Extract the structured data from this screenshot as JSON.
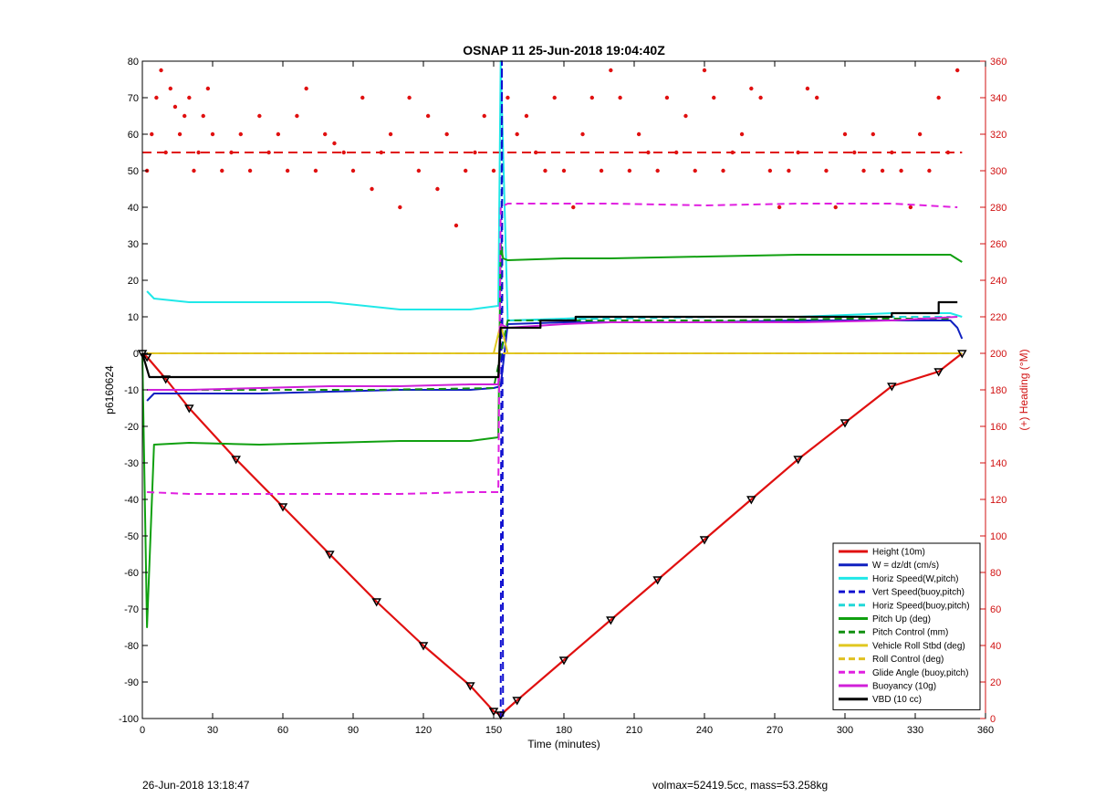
{
  "chart_data": {
    "type": "line",
    "title": "OSNAP 11 25-Jun-2018 19:04:40Z",
    "xlabel": "Time (minutes)",
    "ylabel": "p6160624",
    "y2label": "(+) Heading (°M)",
    "xlim": [
      0,
      360
    ],
    "ylim": [
      -100,
      80
    ],
    "y2lim": [
      0,
      360
    ],
    "xticks": [
      0,
      30,
      60,
      90,
      120,
      150,
      180,
      210,
      240,
      270,
      300,
      330,
      360
    ],
    "yticks": [
      -100,
      -90,
      -80,
      -70,
      -60,
      -50,
      -40,
      -30,
      -20,
      -10,
      0,
      10,
      20,
      30,
      40,
      50,
      60,
      70,
      80
    ],
    "y2ticks": [
      0,
      20,
      40,
      60,
      80,
      100,
      120,
      140,
      160,
      180,
      200,
      220,
      240,
      260,
      280,
      300,
      320,
      340,
      360
    ],
    "grid": false,
    "legend_position": "bottom-right",
    "series": [
      {
        "name": "Height (10m)",
        "color": "#e01010",
        "style": "solid",
        "x": [
          0,
          2,
          10,
          20,
          40,
          60,
          80,
          100,
          120,
          140,
          150,
          153,
          160,
          180,
          200,
          220,
          240,
          260,
          280,
          300,
          320,
          340,
          350
        ],
        "y": [
          0,
          -1,
          -7,
          -15,
          -29,
          -42,
          -55,
          -68,
          -80,
          -91,
          -98,
          -99,
          -95,
          -84,
          -73,
          -62,
          -51,
          -40,
          -29,
          -19,
          -9,
          -5,
          0
        ]
      },
      {
        "name": "W = dz/dt (cm/s)",
        "color": "#1020c0",
        "style": "solid",
        "x": [
          2,
          5,
          20,
          50,
          80,
          110,
          140,
          150,
          153,
          156,
          180,
          200,
          240,
          280,
          320,
          345,
          348,
          350
        ],
        "y": [
          -13,
          -11,
          -11,
          -11,
          -10.5,
          -10,
          -10,
          -9.5,
          -9,
          8,
          8.5,
          8.5,
          8.5,
          9,
          9,
          9,
          7,
          4
        ]
      },
      {
        "name": "Horiz Speed(W,pitch)",
        "color": "#20e8e8",
        "style": "solid",
        "x": [
          2,
          5,
          20,
          50,
          80,
          110,
          140,
          152,
          153,
          156,
          180,
          200,
          240,
          280,
          320,
          345,
          350
        ],
        "y": [
          17,
          15,
          14,
          14,
          14,
          12,
          12,
          13,
          80,
          9,
          9.5,
          10,
          10,
          10,
          11,
          11,
          10
        ]
      },
      {
        "name": "Vert Speed(buoy,pitch)",
        "color": "#1010d0",
        "style": "dashed",
        "x": [
          153,
          153.5,
          154
        ],
        "y": [
          -100,
          80,
          -100
        ]
      },
      {
        "name": "Horiz Speed(buoy,pitch)",
        "color": "#20d8d8",
        "style": "dashed",
        "x": [
          156,
          200,
          250,
          300,
          345
        ],
        "y": [
          9,
          9.5,
          10,
          10,
          10
        ]
      },
      {
        "name": "Pitch Up (deg)",
        "color": "#10a010",
        "style": "solid",
        "x": [
          0,
          2,
          5,
          20,
          50,
          80,
          110,
          140,
          152,
          153,
          154,
          156,
          180,
          200,
          240,
          280,
          320,
          345,
          350
        ],
        "y": [
          0,
          -75,
          -25,
          -24.5,
          -25,
          -24.5,
          -24,
          -24,
          -23,
          30,
          26,
          25.5,
          26,
          26,
          26.5,
          27,
          27,
          27,
          25
        ]
      },
      {
        "name": "Pitch Control (mm)",
        "color": "#109010",
        "style": "dashed",
        "x": [
          5,
          50,
          100,
          150,
          156,
          200,
          250,
          300,
          345
        ],
        "y": [
          -10,
          -10,
          -10,
          -9.5,
          9,
          9,
          9,
          9.5,
          9.5
        ]
      },
      {
        "name": "Vehicle Roll Stbd (deg)",
        "color": "#e0c820",
        "style": "solid",
        "x": [
          2,
          20,
          50,
          80,
          110,
          150,
          153,
          156,
          200,
          250,
          300,
          350
        ],
        "y": [
          0,
          0,
          0,
          0,
          0,
          0,
          8,
          0,
          0,
          0,
          0,
          0
        ]
      },
      {
        "name": "Roll Control (deg)",
        "color": "#e0c020",
        "style": "dashed",
        "x": [
          2,
          50,
          100,
          150,
          156,
          200,
          250,
          300,
          350
        ],
        "y": [
          0,
          0,
          0,
          0,
          0,
          0,
          0,
          0,
          0
        ]
      },
      {
        "name": "Glide Angle (buoy,pitch)",
        "color": "#e020e0",
        "style": "dashed",
        "x": [
          2,
          20,
          50,
          80,
          110,
          140,
          152,
          153,
          156,
          180,
          200,
          240,
          280,
          320,
          348
        ],
        "y": [
          -38,
          -38.5,
          -38.5,
          -38.5,
          -38.5,
          -38,
          -38,
          40,
          41,
          41,
          41,
          40.5,
          41,
          41,
          40
        ]
      },
      {
        "name": "Buoyancy (10g)",
        "color": "#d020d8",
        "style": "solid",
        "x": [
          2,
          20,
          50,
          80,
          110,
          140,
          152,
          153,
          156,
          180,
          200,
          240,
          280,
          320,
          348
        ],
        "y": [
          -10,
          -10,
          -9.5,
          -9,
          -9,
          -8.5,
          -8.5,
          8,
          7,
          8,
          8.5,
          8.5,
          8.5,
          9,
          10
        ]
      },
      {
        "name": "VBD (10 cc)",
        "color": "#000000",
        "style": "solid",
        "x": [
          0,
          3,
          3,
          152,
          153,
          170,
          170,
          185,
          185,
          240,
          240,
          320,
          320,
          340,
          340,
          348
        ],
        "y": [
          0,
          -6.5,
          -6.5,
          -6.5,
          7,
          7,
          9,
          9,
          10,
          10,
          10,
          10,
          11,
          11,
          14,
          14
        ]
      }
    ],
    "heading_series": {
      "name": "(+) Heading (°M)",
      "color": "#e01010",
      "axis": "right",
      "mean_line": 310,
      "x": [
        2,
        4,
        6,
        8,
        10,
        12,
        14,
        16,
        18,
        20,
        22,
        24,
        26,
        28,
        30,
        34,
        38,
        42,
        46,
        50,
        54,
        58,
        62,
        66,
        70,
        74,
        78,
        82,
        86,
        90,
        94,
        98,
        102,
        106,
        110,
        114,
        118,
        122,
        126,
        130,
        134,
        138,
        142,
        146,
        150,
        156,
        160,
        164,
        168,
        172,
        176,
        180,
        184,
        188,
        192,
        196,
        200,
        204,
        208,
        212,
        216,
        220,
        224,
        228,
        232,
        236,
        240,
        244,
        248,
        252,
        256,
        260,
        264,
        268,
        272,
        276,
        280,
        284,
        288,
        292,
        296,
        300,
        304,
        308,
        312,
        316,
        320,
        324,
        328,
        332,
        336,
        340,
        344,
        348
      ],
      "y": [
        300,
        320,
        340,
        355,
        310,
        345,
        335,
        320,
        330,
        340,
        300,
        310,
        330,
        345,
        320,
        300,
        310,
        320,
        300,
        330,
        310,
        320,
        300,
        330,
        345,
        300,
        320,
        315,
        310,
        300,
        340,
        290,
        310,
        320,
        280,
        340,
        300,
        330,
        290,
        320,
        270,
        300,
        310,
        330,
        300,
        340,
        320,
        330,
        310,
        300,
        340,
        300,
        280,
        320,
        340,
        300,
        355,
        340,
        300,
        320,
        310,
        300,
        340,
        310,
        330,
        300,
        355,
        340,
        300,
        310,
        320,
        345,
        340,
        300,
        280,
        300,
        310,
        345,
        340,
        300,
        280,
        320,
        310,
        300,
        320,
        300,
        310,
        300,
        280,
        320,
        300,
        340,
        310,
        355
      ]
    }
  },
  "footer": {
    "date": "26-Jun-2018 13:18:47",
    "info": "volmax=52419.5cc, mass=53.258kg"
  },
  "style": {
    "axis_left_color": "#000000",
    "axis_right_color": "#d01010",
    "background": "#ffffff"
  }
}
